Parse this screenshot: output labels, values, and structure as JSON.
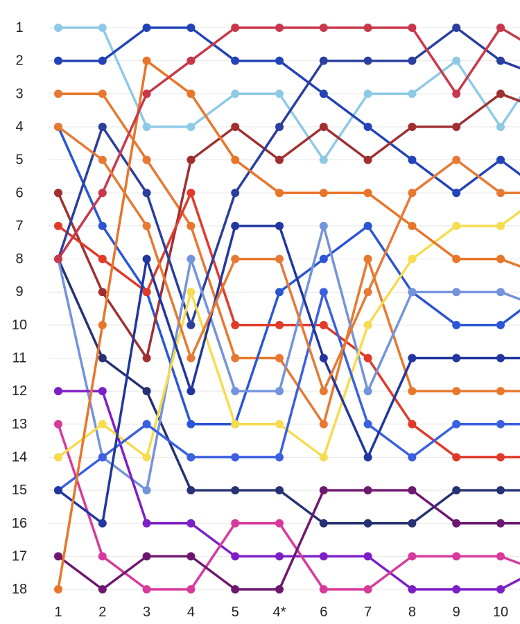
{
  "chart_data": {
    "type": "line",
    "title": "",
    "xlabel": "",
    "ylabel": "",
    "ylim": [
      1,
      18
    ],
    "y_inverted": true,
    "y_ticks": [
      "1",
      "2",
      "3",
      "4",
      "5",
      "6",
      "7",
      "8",
      "9",
      "10",
      "11",
      "12",
      "13",
      "14",
      "15",
      "16",
      "17",
      "18"
    ],
    "x_ticks": [
      "1",
      "2",
      "3",
      "4",
      "5",
      "4*",
      "6",
      "7",
      "8",
      "9",
      "10"
    ],
    "grid": true,
    "legend": "none",
    "series": [
      {
        "color": "#8ecae6",
        "values": [
          1,
          1,
          4,
          4,
          3,
          3,
          5,
          3,
          3,
          2,
          4,
          2
        ]
      },
      {
        "color": "#2343b8",
        "values": [
          2,
          2,
          1,
          1,
          2,
          2,
          3,
          4,
          5,
          6,
          5,
          6
        ]
      },
      {
        "color": "#e8782f",
        "values": [
          3,
          3,
          5,
          7,
          11,
          11,
          13,
          8,
          12,
          12,
          12,
          12
        ]
      },
      {
        "color": "#2b55d6",
        "values": [
          4,
          7,
          9,
          13,
          13,
          9,
          8,
          7,
          9,
          10,
          10,
          9
        ]
      },
      {
        "color": "#a03030",
        "values": [
          6,
          9,
          11,
          5,
          4,
          5,
          4,
          5,
          4,
          4,
          3,
          3.5
        ]
      },
      {
        "color": "#e03a2a",
        "values": [
          7,
          8,
          9,
          6,
          10,
          10,
          10,
          11,
          13,
          14,
          14,
          14
        ]
      },
      {
        "color": "#2a3f9e",
        "values": [
          8,
          4,
          6,
          10,
          6,
          4,
          2,
          2,
          2,
          1,
          2,
          2.5
        ]
      },
      {
        "color": "#263273",
        "values": [
          8,
          11,
          12,
          15,
          15,
          15,
          16,
          16,
          16,
          15,
          15,
          15
        ]
      },
      {
        "color": "#7393dd",
        "values": [
          8,
          14,
          15,
          8,
          12,
          12,
          7,
          12,
          9,
          9,
          9,
          9.5
        ]
      },
      {
        "color": "#7d1fc8",
        "values": [
          12,
          12,
          16,
          16,
          17,
          17,
          17,
          17,
          18,
          18,
          18,
          17.3
        ]
      },
      {
        "color": "#d83a9c",
        "values": [
          13,
          17,
          18,
          18,
          16,
          16,
          18,
          18,
          17,
          17,
          17,
          17.5
        ]
      },
      {
        "color": "#f6dc4e",
        "values": [
          14,
          13,
          14,
          9,
          13,
          13,
          14,
          10,
          8,
          7,
          7,
          6
        ]
      },
      {
        "color": "#3a60e0",
        "values": [
          15,
          14,
          13,
          14,
          14,
          14,
          9,
          13,
          14,
          13,
          13,
          13
        ]
      },
      {
        "color": "#2236a0",
        "values": [
          15,
          16,
          8,
          12,
          7,
          7,
          11,
          14,
          11,
          11,
          11,
          11
        ]
      },
      {
        "color": "#6d1870",
        "values": [
          17,
          18,
          17,
          17,
          18,
          18,
          15,
          15,
          15,
          16,
          16,
          16
        ]
      },
      {
        "color": "#e8752a",
        "values": [
          18,
          10,
          2,
          3,
          5,
          6,
          6,
          6,
          7,
          8,
          8,
          8.5
        ]
      },
      {
        "color": "#c9384a",
        "values": [
          8,
          6,
          3,
          2,
          1,
          1,
          1,
          1,
          1,
          3,
          1,
          1.8
        ]
      },
      {
        "color": "#e67a34",
        "values": [
          4,
          5,
          7,
          11,
          8,
          8,
          12,
          9,
          6,
          5,
          6,
          6
        ]
      }
    ]
  }
}
